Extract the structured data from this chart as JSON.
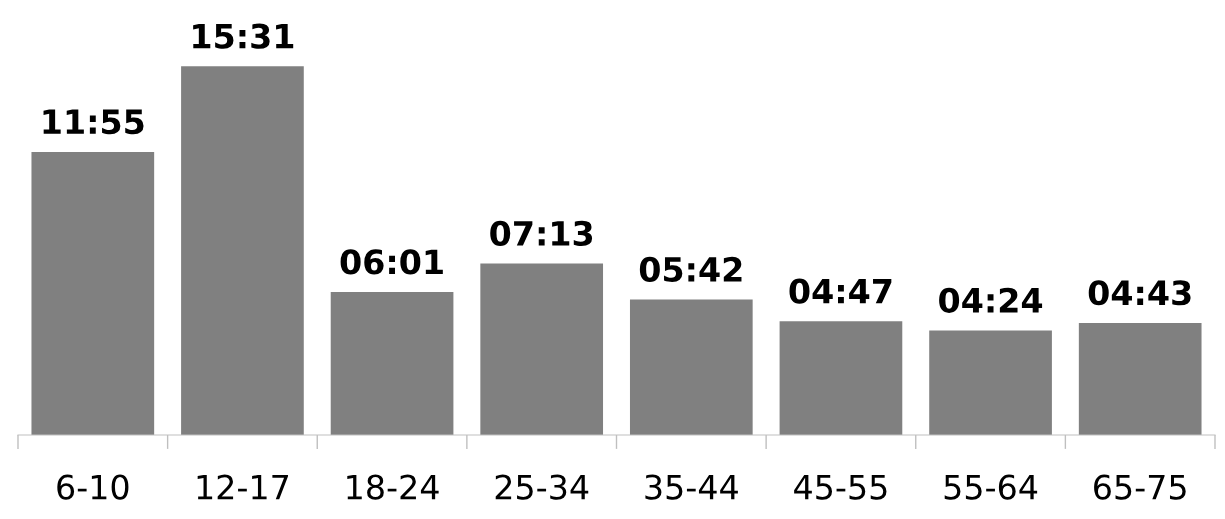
{
  "chart_data": {
    "type": "bar",
    "categories": [
      "6-10",
      "12-17",
      "18-24",
      "25-34",
      "35-44",
      "45-55",
      "55-64",
      "65-75"
    ],
    "values": [
      11.917,
      15.517,
      6.017,
      7.217,
      5.7,
      4.783,
      4.4,
      4.717
    ],
    "value_labels": [
      "11:55",
      "15:31",
      "06:01",
      "07:13",
      "05:42",
      "04:47",
      "04:24",
      "04:43"
    ],
    "color": "#808080",
    "tick_labels": "x",
    "grid": false,
    "legend": false
  }
}
